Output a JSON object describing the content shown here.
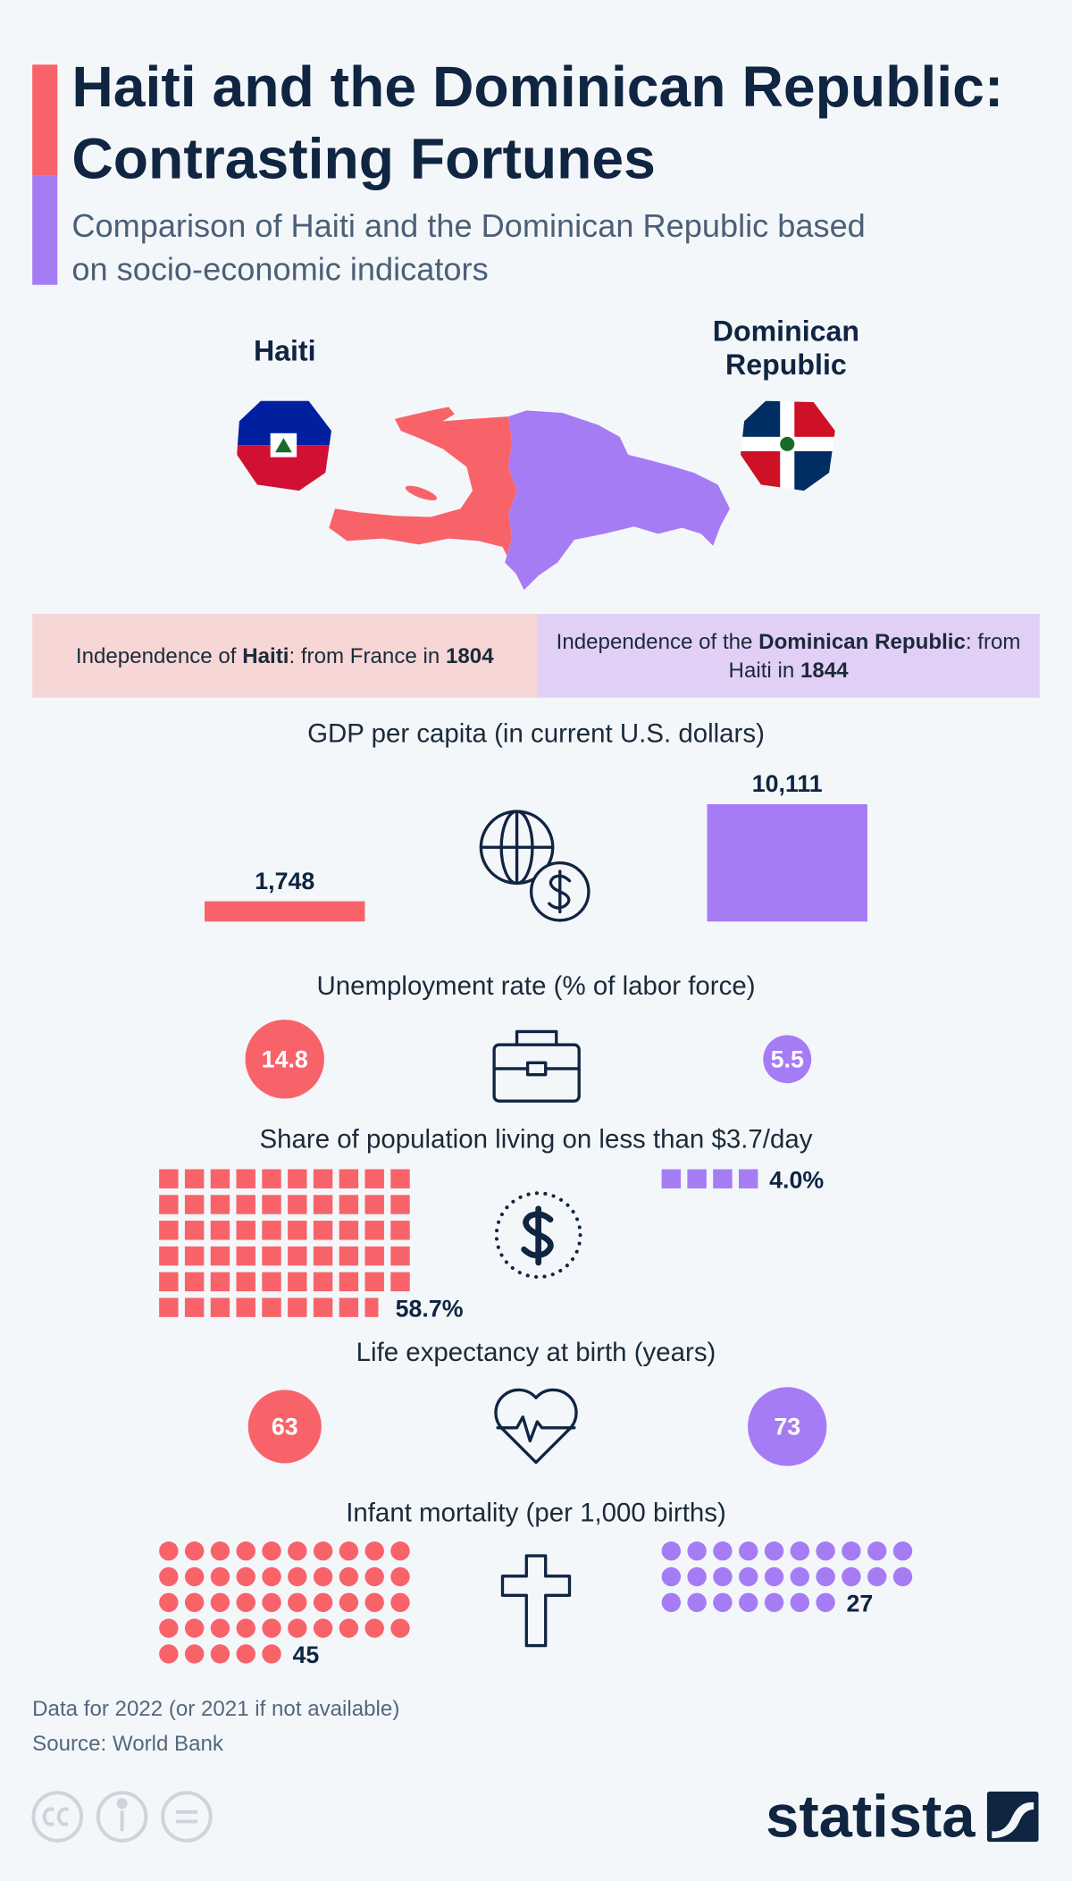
{
  "header": {
    "title": "Haiti and the Dominican Republic: Contrasting Fortunes",
    "subtitle": "Comparison of Haiti and the Dominican Republic based on socio-economic indicators"
  },
  "countries": [
    "Haiti",
    "Dominican Republic"
  ],
  "colors": [
    "#f8636a",
    "#a67cf5"
  ],
  "independence": [
    {
      "segments": [
        "Independence of ",
        "Haiti",
        ": from France in ",
        "1804"
      ],
      "bold": [
        1,
        3
      ]
    },
    {
      "segments": [
        "Independence of the ",
        "Dominican Republic",
        ": from Haiti in ",
        "1844"
      ],
      "bold": [
        1,
        3
      ]
    }
  ],
  "indicators": [
    {
      "title": "GDP per capita (in current U.S. dollars)",
      "type": "bar",
      "values": [
        1748,
        10111
      ],
      "value_labels": [
        "1,748",
        "10,111"
      ]
    },
    {
      "title": "Unemployment rate (% of labor force)",
      "type": "circle",
      "values": [
        14.8,
        5.5
      ]
    },
    {
      "title": "Share of population living on less than $3.7/day",
      "type": "squares",
      "values": [
        58.7,
        4.0
      ],
      "value_labels": [
        "58.7%",
        "4.0%"
      ]
    },
    {
      "title": "Life expectancy at birth (years)",
      "type": "circle",
      "values": [
        63,
        73
      ]
    },
    {
      "title": "Infant mortality (per 1,000 births)",
      "type": "dots",
      "values": [
        45,
        27
      ]
    }
  ],
  "footer": {
    "notes": [
      "Data for 2022 (or 2021 if not available)",
      "Source: World Bank"
    ],
    "brand": "statista"
  }
}
